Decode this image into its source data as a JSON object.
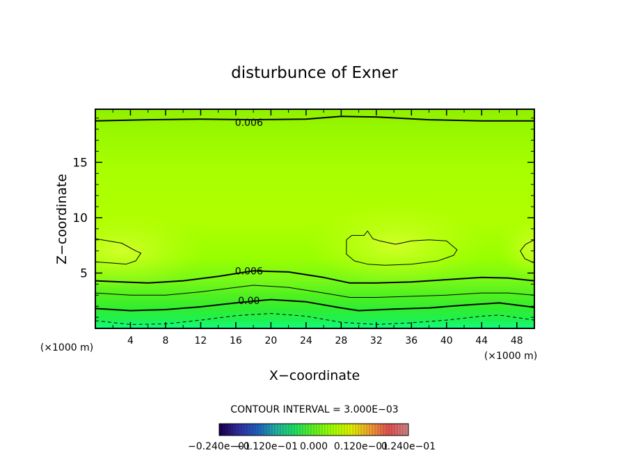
{
  "chart_data": {
    "type": "contour",
    "title": "disturbunce of Exner",
    "xlabel": "X−coordinate",
    "ylabel": "Z−coordinate",
    "x_unit_left": "(×1000 m)",
    "x_unit_right": "(×1000 m)",
    "xlim": [
      0,
      50
    ],
    "ylim": [
      0,
      19.8
    ],
    "xticks": [
      4,
      8,
      12,
      16,
      20,
      24,
      28,
      32,
      36,
      40,
      44,
      48
    ],
    "xtick_labels": [
      "4",
      "8",
      "12",
      "16",
      "20",
      "24",
      "28",
      "32",
      "36",
      "40",
      "44",
      "48"
    ],
    "yticks": [
      5,
      10,
      15
    ],
    "ytick_labels": [
      "5",
      "10",
      "15"
    ],
    "contour_interval_text": "CONTOUR INTERVAL = 3.000E−03",
    "contour_labels": [
      {
        "text": "0.006",
        "x": 17.5,
        "z": 18.6
      },
      {
        "text": "0.006",
        "x": 17.5,
        "z": 5.2
      },
      {
        "text": "0.00",
        "x": 17.5,
        "z": 2.5
      }
    ],
    "contour_lines": [
      {
        "level": 0.006,
        "style": "solid-thick",
        "x": [
          0,
          6,
          12,
          18,
          24,
          28,
          32,
          38,
          44,
          50
        ],
        "z": [
          18.75,
          18.85,
          18.9,
          18.85,
          18.9,
          19.15,
          19.1,
          18.85,
          18.75,
          18.75
        ]
      },
      {
        "level": 0.006,
        "style": "solid-thick",
        "x": [
          0,
          3,
          6,
          10,
          14,
          18,
          22,
          26,
          29,
          32,
          36,
          40,
          44,
          47,
          50
        ],
        "z": [
          4.3,
          4.2,
          4.1,
          4.3,
          4.7,
          5.2,
          5.1,
          4.6,
          4.1,
          4.1,
          4.2,
          4.4,
          4.6,
          4.55,
          4.3
        ]
      },
      {
        "level": 0.003,
        "style": "solid-thin",
        "x": [
          0,
          4,
          8,
          12,
          16,
          18,
          22,
          26,
          29,
          32,
          36,
          40,
          44,
          47,
          50
        ],
        "z": [
          3.2,
          3.0,
          3.0,
          3.3,
          3.7,
          3.9,
          3.7,
          3.2,
          2.8,
          2.8,
          2.9,
          3.0,
          3.2,
          3.2,
          3.0
        ]
      },
      {
        "level": 0.0,
        "style": "solid-thick",
        "x": [
          0,
          4,
          8,
          12,
          16,
          20,
          24,
          28,
          30,
          34,
          38,
          42,
          46,
          50
        ],
        "z": [
          1.8,
          1.6,
          1.7,
          1.95,
          2.3,
          2.6,
          2.4,
          1.85,
          1.6,
          1.75,
          1.85,
          2.1,
          2.3,
          1.9
        ]
      },
      {
        "level": -0.003,
        "style": "dashed",
        "x": [
          0,
          4,
          8,
          12,
          16,
          20,
          24,
          28,
          32,
          36,
          40,
          44,
          46,
          50
        ],
        "z": [
          0.7,
          0.35,
          0.4,
          0.75,
          1.15,
          1.35,
          1.1,
          0.55,
          0.35,
          0.5,
          0.75,
          1.1,
          1.2,
          0.75
        ]
      },
      {
        "level": 0.009,
        "style": "solid-thin-closed",
        "x": [
          0,
          3,
          4.6,
          5.2,
          4.6,
          3.5,
          2,
          0
        ],
        "z": [
          8.1,
          7.7,
          7.0,
          6.8,
          6.1,
          5.8,
          5.9,
          6.0
        ]
      },
      {
        "level": 0.009,
        "style": "solid-thin-closed",
        "x": [
          28.6,
          29.2,
          30.6,
          31.0,
          31.6,
          32.4,
          34.2,
          36,
          38,
          40,
          41.2,
          40.8,
          39,
          36,
          33,
          31,
          29.5,
          28.6,
          28.6
        ],
        "z": [
          8.0,
          8.4,
          8.4,
          8.8,
          8.1,
          7.9,
          7.6,
          7.9,
          8.0,
          7.9,
          7.1,
          6.6,
          6.1,
          5.8,
          5.7,
          5.8,
          6.1,
          6.7,
          8.0
        ]
      },
      {
        "level": 0.009,
        "style": "solid-thin-closed",
        "x": [
          50,
          49,
          48.4,
          48.9,
          50
        ],
        "z": [
          8.0,
          7.6,
          7.0,
          6.3,
          5.9
        ]
      }
    ],
    "colorbar_labels": [
      "−0.240e−01",
      "−0.120e−01",
      "0.000",
      "0.120e−01",
      "0.240e−01"
    ],
    "colorbar_range": [
      -0.024,
      0.024
    ],
    "colorbar_colors": [
      "#1a0050",
      "#3030a0",
      "#2060c0",
      "#20b0a0",
      "#20e060",
      "#60f020",
      "#a0ff00",
      "#e0f000",
      "#f0a030",
      "#e05050",
      "#d08080"
    ]
  }
}
